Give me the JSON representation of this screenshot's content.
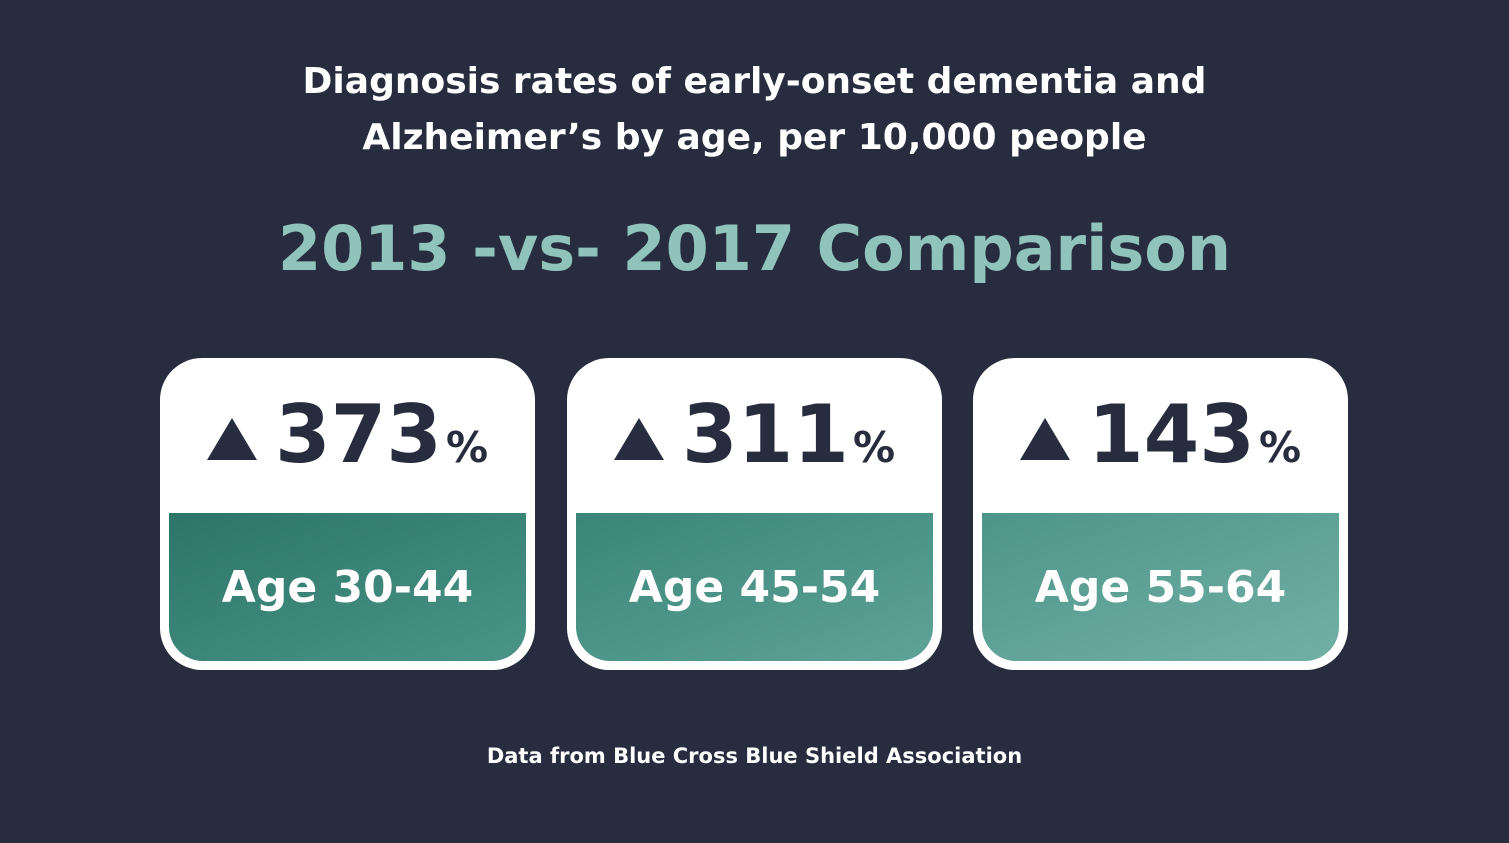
{
  "header": {
    "title_lines": [
      "Diagnosis rates of early-onset dementia and",
      "Alzheimer’s by age, per 10,000 people"
    ],
    "subtitle": "2013 -vs- 2017 Comparison"
  },
  "cards": [
    {
      "value": 373,
      "unit": "%",
      "label": "Age 30-44"
    },
    {
      "value": 311,
      "unit": "%",
      "label": "Age 45-54"
    },
    {
      "value": 143,
      "unit": "%",
      "label": "Age 55-64"
    }
  ],
  "footer": {
    "source": "Data from Blue Cross Blue Shield Association"
  }
}
